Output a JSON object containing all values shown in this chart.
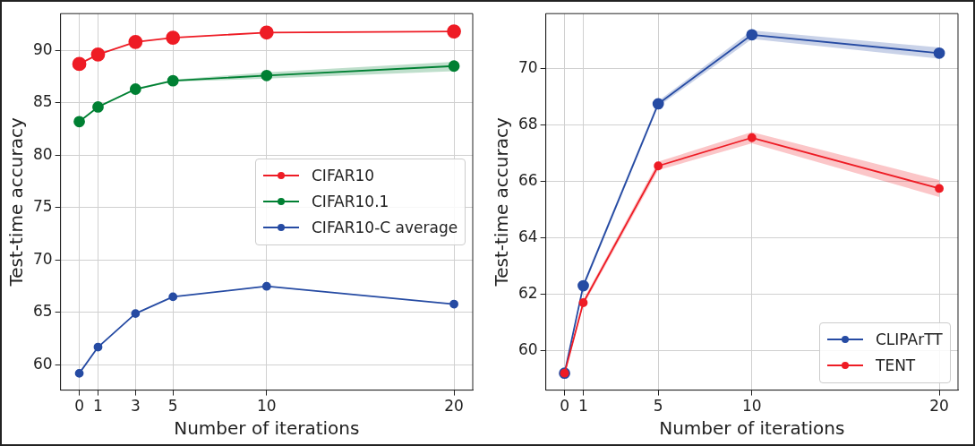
{
  "chart_data": [
    {
      "type": "line",
      "xlabel": "Number of iterations",
      "ylabel": "Test-time accuracy",
      "x": [
        0,
        1,
        3,
        5,
        10,
        20
      ],
      "xlim": [
        -1,
        21
      ],
      "xticks": [
        0,
        1,
        3,
        5,
        10,
        20
      ],
      "ylim": [
        57.6,
        93.5
      ],
      "yticks": [
        60,
        65,
        70,
        75,
        80,
        85,
        90
      ],
      "grid": true,
      "legend": "right",
      "marker": "circle",
      "series": [
        {
          "name": "CIFAR10",
          "color": "#ee1c25",
          "values": [
            88.7,
            89.6,
            90.8,
            91.2,
            91.7,
            91.8
          ]
        },
        {
          "name": "CIFAR10.1",
          "color": "#008033",
          "values": [
            83.2,
            84.6,
            86.3,
            87.1,
            87.6,
            88.5
          ],
          "lower": [
            83.15,
            84.55,
            86.2,
            87.0,
            87.3,
            88.0
          ],
          "upper": [
            83.25,
            84.65,
            86.4,
            87.2,
            87.9,
            88.9
          ]
        },
        {
          "name": "CIFAR10-C average",
          "color": "#264ba3",
          "values": [
            59.2,
            61.7,
            64.9,
            66.5,
            67.5,
            65.8
          ]
        }
      ]
    },
    {
      "type": "line",
      "xlabel": "Number of iterations",
      "ylabel": "Test-time accuracy",
      "x": [
        0,
        1,
        5,
        10,
        20
      ],
      "xlim": [
        -1,
        21
      ],
      "xticks": [
        0,
        1,
        5,
        10,
        20
      ],
      "ylim": [
        58.6,
        71.95
      ],
      "yticks": [
        60,
        62,
        64,
        66,
        68,
        70
      ],
      "grid": true,
      "legend": "bottom right",
      "marker": "circle",
      "series": [
        {
          "name": "CLIPArTT",
          "color": "#264ba3",
          "values": [
            59.2,
            62.3,
            68.75,
            71.2,
            70.55
          ],
          "lower": [
            59.15,
            62.2,
            68.65,
            71.05,
            70.35
          ],
          "upper": [
            59.25,
            62.4,
            68.85,
            71.35,
            70.75
          ]
        },
        {
          "name": "TENT",
          "color": "#ee1c25",
          "values": [
            59.2,
            61.7,
            66.55,
            67.55,
            65.75
          ],
          "lower": [
            59.15,
            61.6,
            66.4,
            67.35,
            65.45
          ],
          "upper": [
            59.25,
            61.8,
            66.7,
            67.75,
            66.05
          ]
        }
      ]
    }
  ]
}
